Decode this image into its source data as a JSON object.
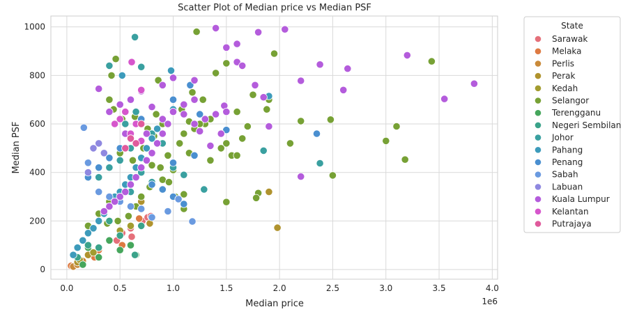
{
  "chart_data": {
    "type": "scatter",
    "title": "Scatter Plot of Median price vs Median PSF",
    "xlabel": "Median price",
    "ylabel": "Median PSF",
    "x_offset_label": "1e6",
    "xlim": [
      -150000,
      4050000
    ],
    "ylim": [
      -40,
      1045
    ],
    "x_ticks": [
      0,
      500000,
      1000000,
      1500000,
      2000000,
      2500000,
      3000000,
      3500000,
      4000000
    ],
    "x_tick_labels": [
      "0.0",
      "0.5",
      "1.0",
      "1.5",
      "2.0",
      "2.5",
      "3.0",
      "3.5",
      "4.0"
    ],
    "y_ticks": [
      0,
      200,
      400,
      600,
      800,
      1000
    ],
    "y_tick_labels": [
      "0",
      "200",
      "400",
      "600",
      "800",
      "1000"
    ],
    "grid": true,
    "legend_title": "State",
    "legend_position": "outside-right",
    "series": [
      {
        "name": "Sarawak",
        "color": "#e5707a",
        "points": [
          [
            470000,
            120
          ],
          [
            610000,
            135
          ],
          [
            710000,
            200
          ],
          [
            760000,
            215
          ],
          [
            790000,
            220
          ],
          [
            600000,
            170
          ],
          [
            520000,
            150
          ]
        ]
      },
      {
        "name": "Melaka",
        "color": "#de7a42",
        "points": [
          [
            40000,
            15
          ],
          [
            120000,
            30
          ],
          [
            200000,
            60
          ],
          [
            300000,
            80
          ],
          [
            400000,
            120
          ],
          [
            680000,
            210
          ],
          [
            520000,
            100
          ],
          [
            260000,
            50
          ]
        ]
      },
      {
        "name": "Perlis",
        "color": "#c98a3a",
        "points": [
          [
            60000,
            12
          ],
          [
            100000,
            20
          ],
          [
            150000,
            35
          ]
        ]
      },
      {
        "name": "Perak",
        "color": "#b0932e",
        "points": [
          [
            1980000,
            172
          ],
          [
            1900000,
            320
          ],
          [
            780000,
            190
          ],
          [
            700000,
            280
          ],
          [
            300000,
            90
          ],
          [
            200000,
            60
          ],
          [
            100000,
            30
          ]
        ]
      },
      {
        "name": "Kedah",
        "color": "#a39c30",
        "points": [
          [
            120000,
            40
          ],
          [
            250000,
            70
          ],
          [
            400000,
            120
          ],
          [
            600000,
            180
          ],
          [
            500000,
            160
          ]
        ]
      },
      {
        "name": "Selangor",
        "color": "#77a135",
        "points": [
          [
            1220000,
            980
          ],
          [
            1950000,
            890
          ],
          [
            3430000,
            858
          ],
          [
            1500000,
            850
          ],
          [
            1400000,
            810
          ],
          [
            1750000,
            720
          ],
          [
            1900000,
            700
          ],
          [
            1880000,
            660
          ],
          [
            1600000,
            650
          ],
          [
            1350000,
            620
          ],
          [
            1280000,
            700
          ],
          [
            1180000,
            730
          ],
          [
            1300000,
            600
          ],
          [
            1200000,
            580
          ],
          [
            1100000,
            560
          ],
          [
            2200000,
            612
          ],
          [
            2480000,
            618
          ],
          [
            3100000,
            590
          ],
          [
            3000000,
            530
          ],
          [
            2100000,
            520
          ],
          [
            1500000,
            520
          ],
          [
            1450000,
            500
          ],
          [
            1550000,
            470
          ],
          [
            1600000,
            470
          ],
          [
            1350000,
            450
          ],
          [
            3180000,
            453
          ],
          [
            2500000,
            388
          ],
          [
            1800000,
            315
          ],
          [
            1780000,
            295
          ],
          [
            1100000,
            310
          ],
          [
            1500000,
            278
          ],
          [
            1100000,
            250
          ],
          [
            460000,
            868
          ],
          [
            420000,
            800
          ],
          [
            860000,
            780
          ],
          [
            1000000,
            790
          ],
          [
            640000,
            630
          ],
          [
            900000,
            600
          ],
          [
            1060000,
            520
          ],
          [
            950000,
            470
          ],
          [
            800000,
            430
          ],
          [
            700000,
            400
          ],
          [
            600000,
            350
          ],
          [
            500000,
            320
          ],
          [
            400000,
            280
          ],
          [
            300000,
            230
          ],
          [
            200000,
            180
          ],
          [
            1000000,
            410
          ],
          [
            900000,
            370
          ],
          [
            780000,
            340
          ],
          [
            1150000,
            480
          ],
          [
            1250000,
            600
          ],
          [
            560000,
            560
          ],
          [
            500000,
            480
          ],
          [
            620000,
            450
          ],
          [
            720000,
            500
          ],
          [
            820000,
            550
          ],
          [
            880000,
            420
          ],
          [
            960000,
            360
          ],
          [
            1020000,
            300
          ],
          [
            1080000,
            660
          ],
          [
            1150000,
            610
          ],
          [
            700000,
            300
          ],
          [
            650000,
            260
          ],
          [
            580000,
            220
          ],
          [
            480000,
            200
          ],
          [
            380000,
            190
          ],
          [
            760000,
            580
          ],
          [
            840000,
            640
          ],
          [
            520000,
            620
          ],
          [
            440000,
            660
          ],
          [
            400000,
            700
          ],
          [
            1700000,
            590
          ],
          [
            1650000,
            540
          ]
        ]
      },
      {
        "name": "Terengganu",
        "color": "#46a65c",
        "points": [
          [
            150000,
            20
          ],
          [
            300000,
            50
          ],
          [
            500000,
            80
          ],
          [
            650000,
            60
          ],
          [
            600000,
            100
          ],
          [
            400000,
            120
          ],
          [
            200000,
            90
          ]
        ]
      },
      {
        "name": "Negeri Sembilan",
        "color": "#3ba38a",
        "points": [
          [
            640000,
            60
          ],
          [
            300000,
            90
          ],
          [
            500000,
            140
          ],
          [
            200000,
            100
          ],
          [
            400000,
            200
          ],
          [
            700000,
            180
          ],
          [
            100000,
            50
          ]
        ]
      },
      {
        "name": "Johor",
        "color": "#3aa0a0",
        "points": [
          [
            640000,
            958
          ],
          [
            400000,
            840
          ],
          [
            700000,
            835
          ],
          [
            650000,
            650
          ],
          [
            550000,
            600
          ],
          [
            800000,
            560
          ],
          [
            900000,
            520
          ],
          [
            600000,
            500
          ],
          [
            500000,
            450
          ],
          [
            400000,
            420
          ],
          [
            300000,
            380
          ],
          [
            1000000,
            420
          ],
          [
            1100000,
            390
          ],
          [
            1290000,
            330
          ],
          [
            1850000,
            490
          ],
          [
            2380000,
            438
          ],
          [
            700000,
            400
          ],
          [
            800000,
            360
          ],
          [
            600000,
            320
          ],
          [
            500000,
            280
          ]
        ]
      },
      {
        "name": "Pahang",
        "color": "#3d9bbb",
        "points": [
          [
            520000,
            800
          ],
          [
            980000,
            820
          ],
          [
            1900000,
            715
          ],
          [
            1000000,
            660
          ],
          [
            900000,
            620
          ],
          [
            850000,
            580
          ],
          [
            800000,
            540
          ],
          [
            750000,
            500
          ],
          [
            700000,
            460
          ],
          [
            650000,
            420
          ],
          [
            600000,
            380
          ],
          [
            550000,
            350
          ],
          [
            500000,
            320
          ],
          [
            450000,
            300
          ],
          [
            400000,
            260
          ],
          [
            350000,
            230
          ],
          [
            300000,
            200
          ],
          [
            250000,
            170
          ],
          [
            200000,
            150
          ],
          [
            150000,
            120
          ],
          [
            100000,
            90
          ],
          [
            60000,
            60
          ]
        ]
      },
      {
        "name": "Penang",
        "color": "#4a8fd0",
        "points": [
          [
            2350000,
            560
          ],
          [
            1500000,
            575
          ],
          [
            1250000,
            640
          ],
          [
            1160000,
            760
          ],
          [
            1000000,
            700
          ],
          [
            700000,
            620
          ],
          [
            600000,
            560
          ],
          [
            500000,
            500
          ],
          [
            400000,
            460
          ],
          [
            300000,
            420
          ],
          [
            200000,
            380
          ],
          [
            1100000,
            270
          ],
          [
            1000000,
            300
          ],
          [
            900000,
            330
          ],
          [
            800000,
            350
          ],
          [
            1000000,
            440
          ],
          [
            1200000,
            470
          ]
        ]
      },
      {
        "name": "Sabah",
        "color": "#6a9ae0",
        "points": [
          [
            160000,
            585
          ],
          [
            200000,
            440
          ],
          [
            1180000,
            198
          ],
          [
            800000,
            215
          ],
          [
            700000,
            250
          ],
          [
            600000,
            260
          ],
          [
            500000,
            280
          ],
          [
            400000,
            300
          ],
          [
            300000,
            320
          ],
          [
            950000,
            240
          ],
          [
            1050000,
            290
          ]
        ]
      },
      {
        "name": "Labuan",
        "color": "#8f88e0",
        "points": [
          [
            250000,
            500
          ],
          [
            300000,
            520
          ],
          [
            350000,
            480
          ],
          [
            200000,
            400
          ]
        ]
      },
      {
        "name": "Kuala Lumpur",
        "color": "#b45cdc",
        "points": [
          [
            1400000,
            995
          ],
          [
            1800000,
            978
          ],
          [
            1600000,
            930
          ],
          [
            1500000,
            915
          ],
          [
            1600000,
            855
          ],
          [
            1650000,
            840
          ],
          [
            1770000,
            760
          ],
          [
            2200000,
            778
          ],
          [
            1850000,
            710
          ],
          [
            1480000,
            675
          ],
          [
            1500000,
            650
          ],
          [
            1400000,
            640
          ],
          [
            1300000,
            620
          ],
          [
            1250000,
            570
          ],
          [
            1200000,
            700
          ],
          [
            1100000,
            680
          ],
          [
            1000000,
            650
          ],
          [
            950000,
            600
          ],
          [
            900000,
            560
          ],
          [
            850000,
            520
          ],
          [
            800000,
            480
          ],
          [
            750000,
            450
          ],
          [
            700000,
            420
          ],
          [
            650000,
            380
          ],
          [
            600000,
            350
          ],
          [
            550000,
            320
          ],
          [
            500000,
            300
          ],
          [
            450000,
            280
          ],
          [
            400000,
            260
          ],
          [
            350000,
            240
          ],
          [
            1900000,
            590
          ],
          [
            1450000,
            560
          ],
          [
            1350000,
            510
          ],
          [
            1200000,
            600
          ],
          [
            1100000,
            640
          ],
          [
            2200000,
            383
          ],
          [
            900000,
            760
          ],
          [
            1000000,
            790
          ],
          [
            1200000,
            780
          ],
          [
            300000,
            745
          ],
          [
            400000,
            650
          ],
          [
            500000,
            680
          ],
          [
            600000,
            700
          ],
          [
            700000,
            735
          ],
          [
            800000,
            670
          ],
          [
            900000,
            620
          ],
          [
            550000,
            560
          ],
          [
            650000,
            600
          ],
          [
            750000,
            560
          ],
          [
            2050000,
            990
          ],
          [
            2380000,
            845
          ],
          [
            2640000,
            828
          ],
          [
            3200000,
            883
          ],
          [
            3550000,
            703
          ],
          [
            3830000,
            766
          ],
          [
            2600000,
            740
          ]
        ]
      },
      {
        "name": "Kelantan",
        "color": "#d656cc",
        "points": [
          [
            610000,
            855
          ],
          [
            700000,
            740
          ],
          [
            550000,
            650
          ],
          [
            500000,
            620
          ],
          [
            450000,
            600
          ],
          [
            650000,
            600
          ],
          [
            600000,
            560
          ],
          [
            700000,
            530
          ]
        ]
      },
      {
        "name": "Putrajaya",
        "color": "#e05a9c",
        "points": [
          [
            600000,
            540
          ],
          [
            650000,
            520
          ],
          [
            550000,
            500
          ],
          [
            700000,
            600
          ]
        ]
      }
    ]
  }
}
